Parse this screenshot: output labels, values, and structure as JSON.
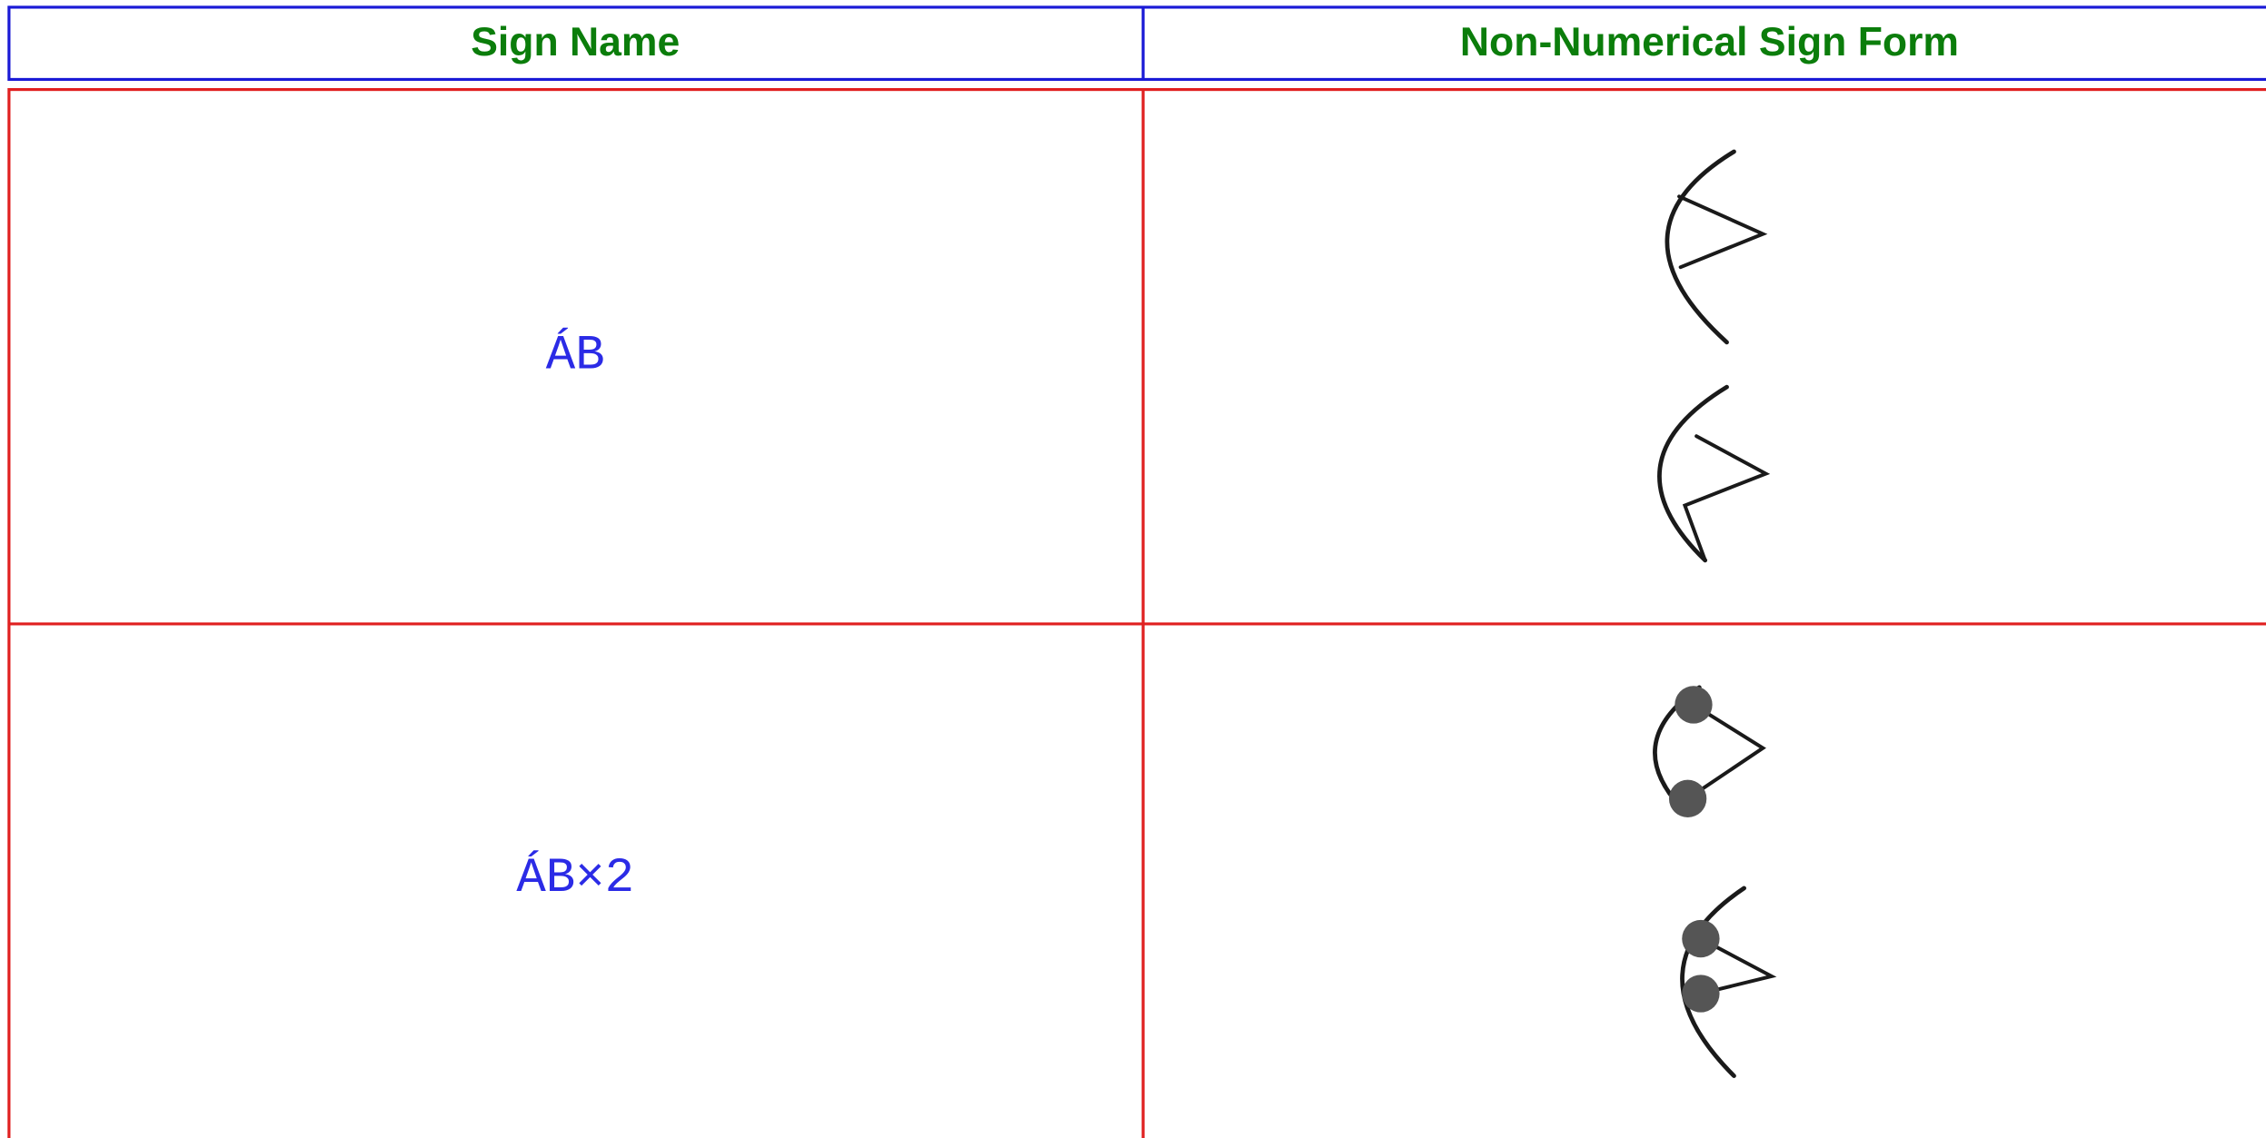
{
  "header": {
    "columns": [
      "Sign Name",
      "Non-Numerical Sign Form"
    ]
  },
  "table": {
    "rows": [
      [
        "ÁB"
      ],
      [
        "ÁB×2"
      ]
    ]
  }
}
